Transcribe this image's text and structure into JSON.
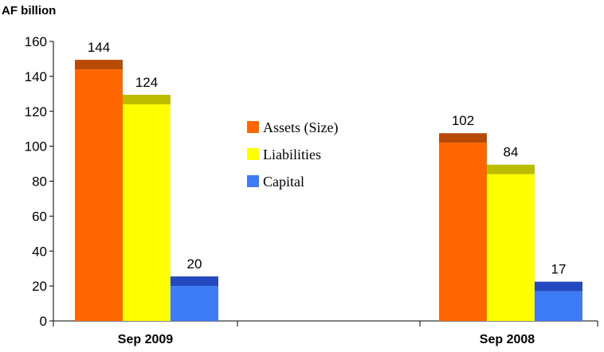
{
  "chart_data": {
    "type": "bar",
    "unit_label": "AF billion",
    "categories": [
      "Sep 2009",
      "Sep 2008"
    ],
    "series": [
      {
        "name": "Assets (Size)",
        "values": [
          144,
          102
        ],
        "color": "#FF6600",
        "cap_color": "#B84A06"
      },
      {
        "name": "Liabilities",
        "values": [
          124,
          84
        ],
        "color": "#FFFF00",
        "cap_color": "#BDBD00"
      },
      {
        "name": "Capital",
        "values": [
          20,
          17
        ],
        "color": "#3D7BF7",
        "cap_color": "#2348BF"
      }
    ],
    "data_labels": [
      [
        "144",
        "124",
        "20"
      ],
      [
        "102",
        "84",
        "17"
      ]
    ],
    "y_ticks": [
      "0",
      "20",
      "40",
      "60",
      "80",
      "100",
      "120",
      "140",
      "160"
    ],
    "ylim": [
      0,
      160
    ],
    "legend_position": "center"
  }
}
